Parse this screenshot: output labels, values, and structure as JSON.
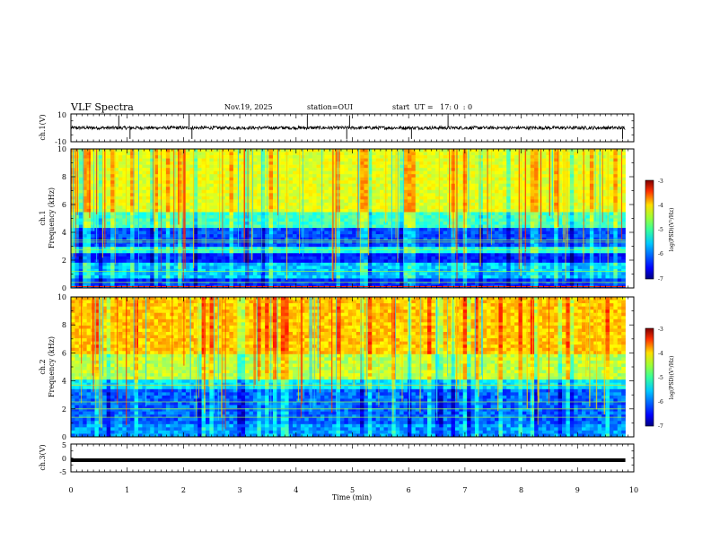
{
  "header": {
    "title": "VLF Spectra",
    "date": "Nov.19, 2025",
    "station": "station=OUI",
    "start": "start  UT =   17: 0  : 0"
  },
  "chart_data": [
    {
      "type": "line",
      "id": "ch1-waveform",
      "ylabel": "ch.1(V)",
      "ylim": [
        -10,
        10
      ],
      "yticks": [
        "10",
        "-10"
      ],
      "description_series": {
        "name": "ch.1 waveform",
        "baseline": 0,
        "noise_amplitude": 2,
        "spikes_at_min": [
          0.85,
          1.05,
          2.1,
          2.15,
          4.2,
          4.9,
          4.95,
          6.05,
          6.7,
          9.8
        ]
      }
    },
    {
      "type": "heatmap",
      "id": "ch1-spectrogram",
      "ylabel_top": "ch.1",
      "ylabel": "Frequency  (kHz)",
      "ylim": [
        0,
        10
      ],
      "yticks": [
        "0",
        "2",
        "4",
        "6",
        "8",
        "10"
      ],
      "dark_bands_khz": [
        [
          2.0,
          2.5
        ],
        [
          3.0,
          4.2
        ]
      ],
      "colorbar": {
        "label": "log(PSD)(V²/Hz)",
        "min": -7,
        "max": -3,
        "ticks": [
          "-3",
          "-4",
          "-5",
          "-6",
          "-7"
        ]
      }
    },
    {
      "type": "heatmap",
      "id": "ch2-spectrogram",
      "ylabel_top": "ch.2",
      "ylabel": "Frequency  (kHz)",
      "ylim": [
        0,
        10
      ],
      "yticks": [
        "0",
        "2",
        "4",
        "6",
        "8",
        "10"
      ],
      "bright_line_khz": 3.7,
      "colorbar": {
        "label": "log(PSD)(V²/Hz)",
        "min": -7,
        "max": -3,
        "ticks": [
          "-3",
          "-4",
          "-5",
          "-6",
          "-7"
        ]
      }
    },
    {
      "type": "line",
      "id": "ch3-waveform",
      "ylabel": "ch.3(V)",
      "ylim": [
        -5,
        5
      ],
      "yticks": [
        "5",
        "0",
        "-5"
      ],
      "description_series": {
        "name": "ch.3 waveform",
        "baseline": -0.8
      }
    }
  ],
  "xaxis": {
    "xlabel": "Time  (min)",
    "xlim": [
      0,
      10
    ],
    "xticks": [
      "0",
      "1",
      "2",
      "3",
      "4",
      "5",
      "6",
      "7",
      "8",
      "9",
      "10"
    ],
    "data_end_min": 9.85
  },
  "colors": {
    "axis": "#000000",
    "background": "#ffffff"
  }
}
